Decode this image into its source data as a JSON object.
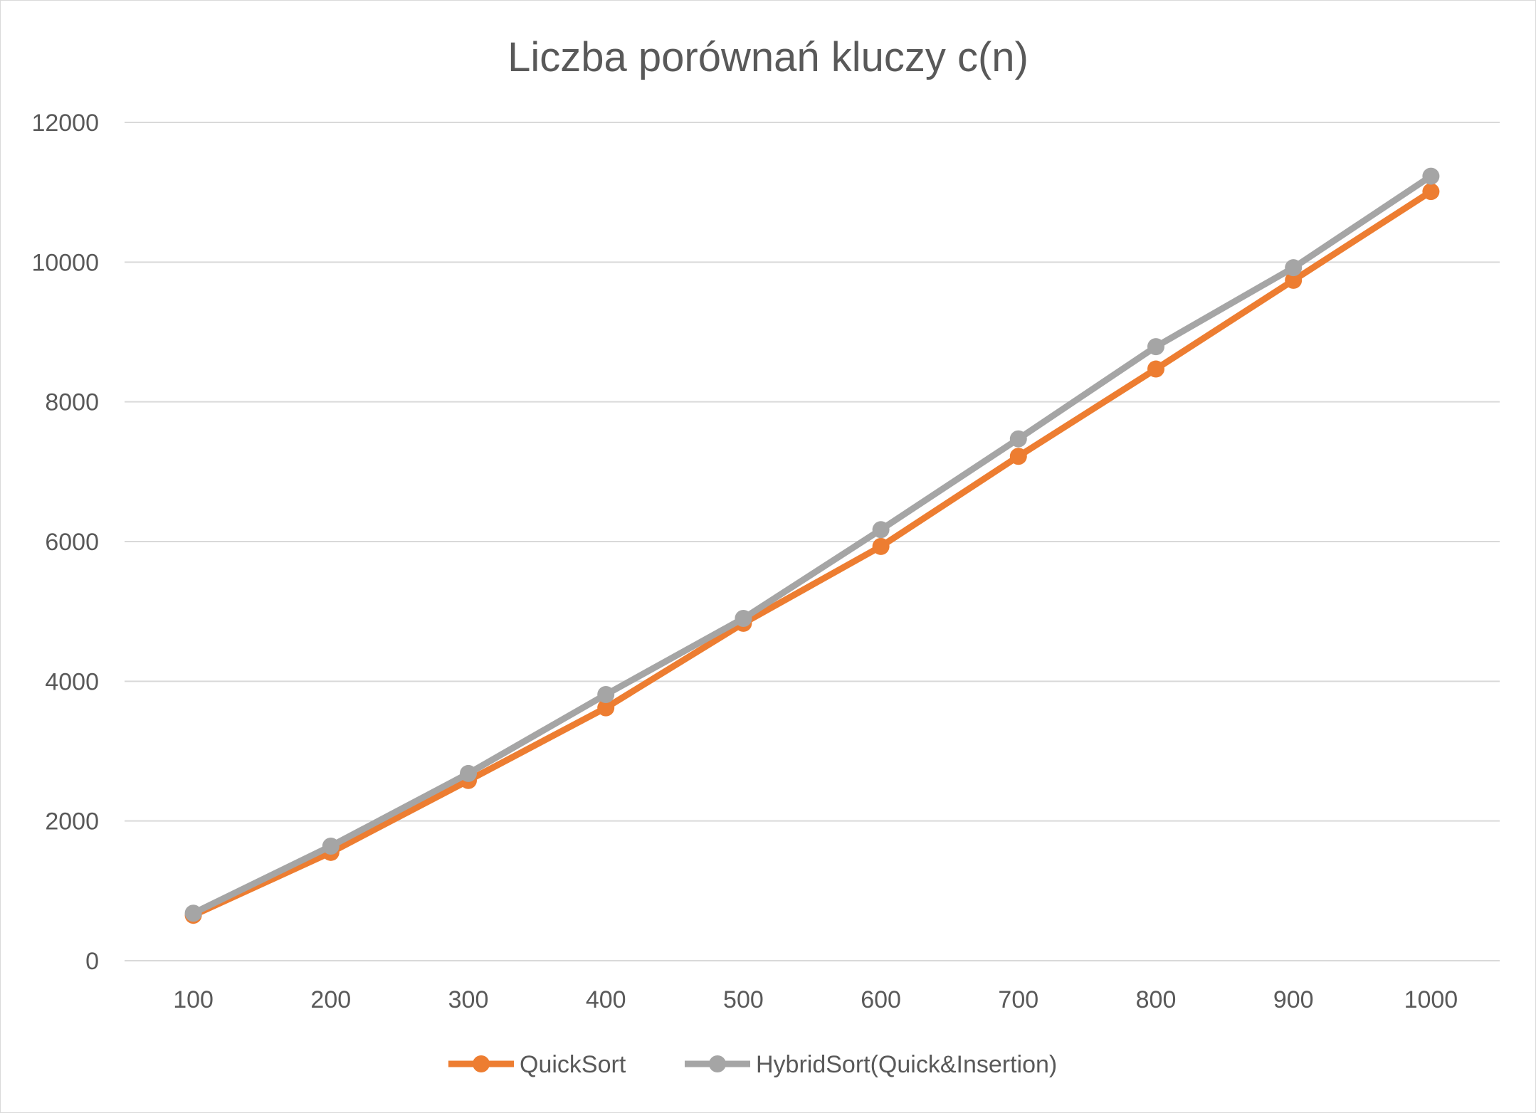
{
  "chart_data": {
    "type": "line",
    "title": "Liczba porównań kluczy c(n)",
    "xlabel": "",
    "ylabel": "",
    "categories": [
      "100",
      "200",
      "300",
      "400",
      "500",
      "600",
      "700",
      "800",
      "900",
      "1000"
    ],
    "ylim": [
      0,
      12000
    ],
    "yticks": [
      "0",
      "2000",
      "4000",
      "6000",
      "8000",
      "10000",
      "12000"
    ],
    "grid": true,
    "legend_position": "bottom",
    "series": [
      {
        "name": "QuickSort",
        "color": "#ed7d31",
        "values": [
          650,
          1550,
          2580,
          3620,
          4830,
          5930,
          7220,
          8470,
          9740,
          11010
        ]
      },
      {
        "name": "HybridSort(Quick&Insertion)",
        "color": "#a5a5a5",
        "values": [
          680,
          1640,
          2680,
          3810,
          4900,
          6170,
          7470,
          8790,
          9920,
          11230
        ]
      }
    ]
  }
}
